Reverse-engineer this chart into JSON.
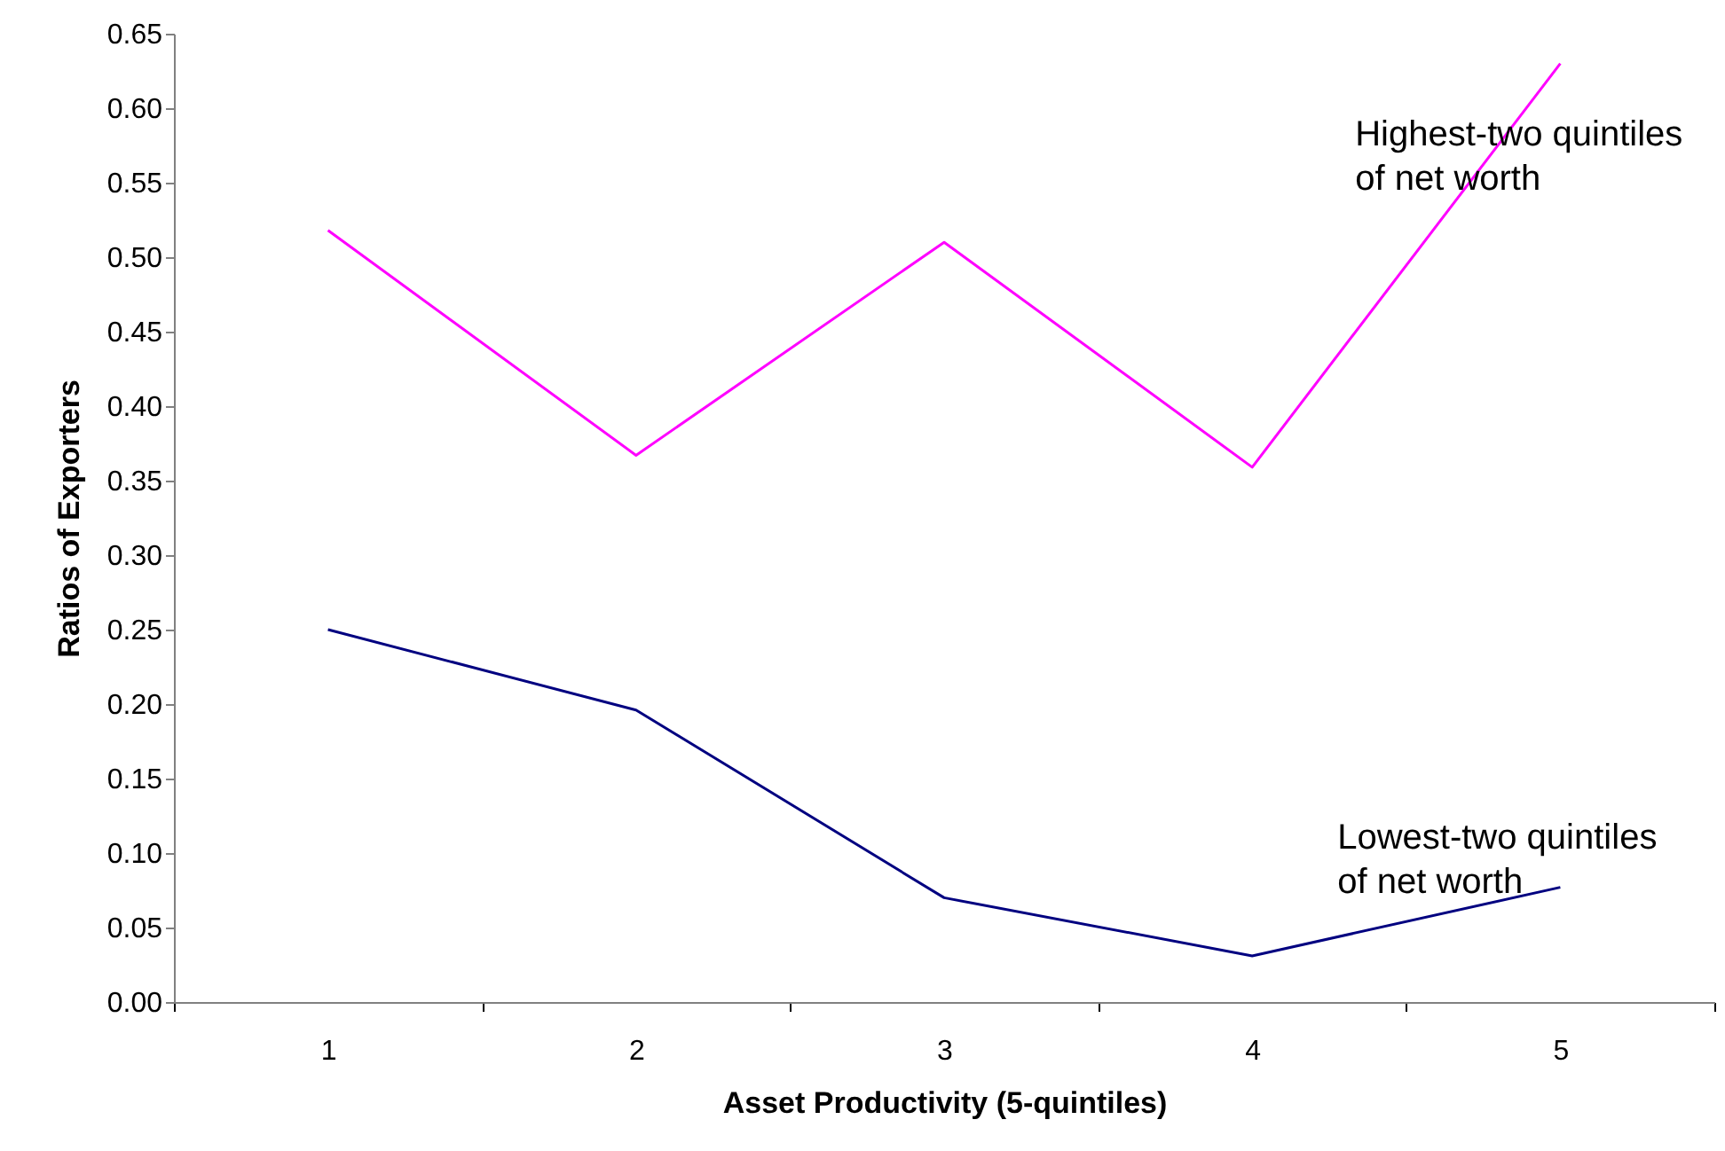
{
  "chart_data": {
    "type": "line",
    "xlabel": "Asset Productivity (5-quintiles)",
    "ylabel": "Ratios of Exporters",
    "categories": [
      "1",
      "2",
      "3",
      "4",
      "5"
    ],
    "series": [
      {
        "name": "Highest-two quintiles of net worth",
        "color": "#ff00ff",
        "values": [
          0.518,
          0.367,
          0.51,
          0.359,
          0.63
        ]
      },
      {
        "name": "Lowest-two quintiles of net worth",
        "color": "#000080",
        "values": [
          0.25,
          0.196,
          0.07,
          0.031,
          0.077
        ]
      }
    ],
    "ylim": [
      0,
      0.65
    ],
    "yticks": [
      {
        "value": 0,
        "label": "0.00"
      },
      0.05,
      {
        "value": 0.1,
        "label": "0.10"
      },
      0.15,
      {
        "value": 0.2,
        "label": "0.20"
      },
      0.25,
      {
        "value": 0.3,
        "label": "0.30"
      },
      0.35,
      {
        "value": 0.4,
        "label": "0.40"
      },
      0.45,
      {
        "value": 0.5,
        "label": "0.50"
      },
      0.55,
      {
        "value": 0.6,
        "label": "0.60"
      },
      0.65
    ],
    "grid": false,
    "marker": "none",
    "line_style": "solid"
  }
}
